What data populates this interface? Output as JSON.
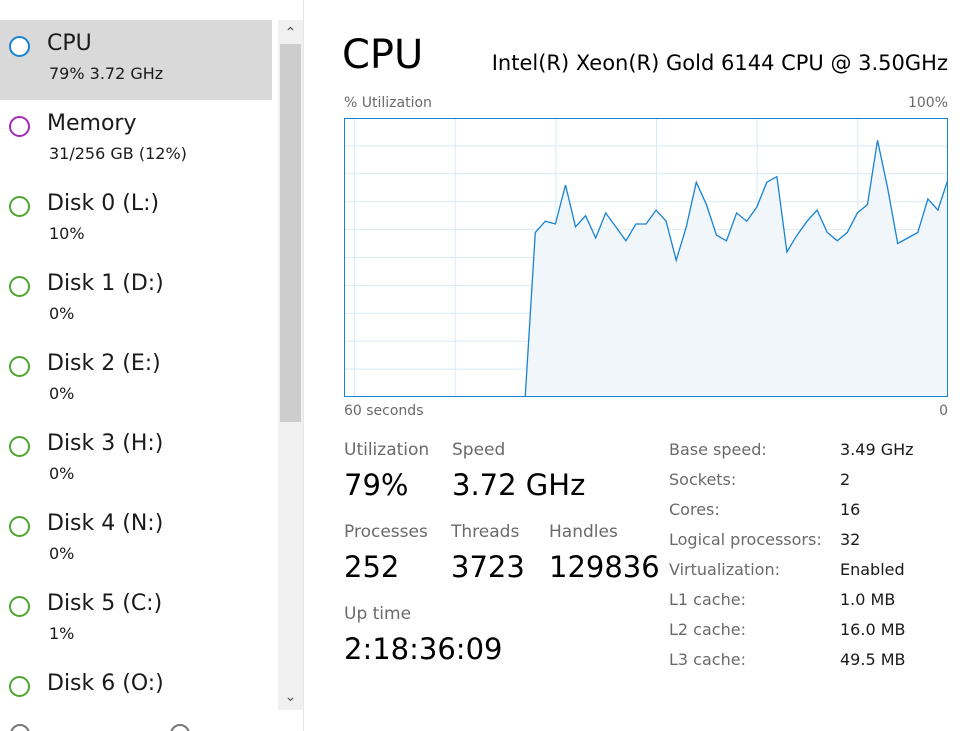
{
  "sidebar": {
    "items": [
      {
        "title": "CPU",
        "sub": "79%  3.72 GHz",
        "color": "#1783d4",
        "selected": true
      },
      {
        "title": "Memory",
        "sub": "31/256 GB (12%)",
        "color": "#a32ab6",
        "selected": false
      },
      {
        "title": "Disk 0 (L:)",
        "sub": "10%",
        "color": "#4ea72e",
        "selected": false
      },
      {
        "title": "Disk 1 (D:)",
        "sub": "0%",
        "color": "#4ea72e",
        "selected": false
      },
      {
        "title": "Disk 2 (E:)",
        "sub": "0%",
        "color": "#4ea72e",
        "selected": false
      },
      {
        "title": "Disk 3 (H:)",
        "sub": "0%",
        "color": "#4ea72e",
        "selected": false
      },
      {
        "title": "Disk 4 (N:)",
        "sub": "0%",
        "color": "#4ea72e",
        "selected": false
      },
      {
        "title": "Disk 5 (C:)",
        "sub": "1%",
        "color": "#4ea72e",
        "selected": false
      },
      {
        "title": "Disk 6 (O:)",
        "sub": "",
        "color": "#4ea72e",
        "selected": false
      }
    ]
  },
  "main": {
    "title": "CPU",
    "model": "Intel(R) Xeon(R) Gold 6144 CPU @ 3.50GHz",
    "graph": {
      "y_label": "% Utilization",
      "y_max_label": "100%",
      "x_left_label": "60 seconds",
      "x_right_label": "0",
      "line_color": "#1783d4",
      "fill_color": "#f1f6fb",
      "grid_color": "#d9eaf7",
      "values": [
        0,
        0,
        0,
        0,
        0,
        0,
        0,
        0,
        0,
        0,
        0,
        0,
        0,
        0,
        0,
        0,
        0,
        0,
        0,
        59,
        63,
        62,
        76,
        61,
        65,
        57,
        66,
        61,
        56,
        62,
        62,
        67,
        63,
        49,
        61,
        77,
        69,
        58,
        56,
        66,
        63,
        68,
        77,
        79,
        52,
        58,
        63,
        67,
        59,
        56,
        59,
        66,
        69,
        92,
        75,
        55,
        57,
        59,
        71,
        67,
        78
      ]
    },
    "stats": {
      "utilization_label": "Utilization",
      "utilization_value": "79%",
      "speed_label": "Speed",
      "speed_value": "3.72 GHz",
      "processes_label": "Processes",
      "processes_value": "252",
      "threads_label": "Threads",
      "threads_value": "3723",
      "handles_label": "Handles",
      "handles_value": "129836",
      "uptime_label": "Up time",
      "uptime_value": "2:18:36:09"
    },
    "specs": [
      {
        "key": "Base speed:",
        "value": "3.49 GHz"
      },
      {
        "key": "Sockets:",
        "value": "2"
      },
      {
        "key": "Cores:",
        "value": "16"
      },
      {
        "key": "Logical processors:",
        "value": "32"
      },
      {
        "key": "Virtualization:",
        "value": "Enabled"
      },
      {
        "key": "L1 cache:",
        "value": "1.0 MB"
      },
      {
        "key": "L2 cache:",
        "value": "16.0 MB"
      },
      {
        "key": "L3 cache:",
        "value": "49.5 MB"
      }
    ]
  }
}
